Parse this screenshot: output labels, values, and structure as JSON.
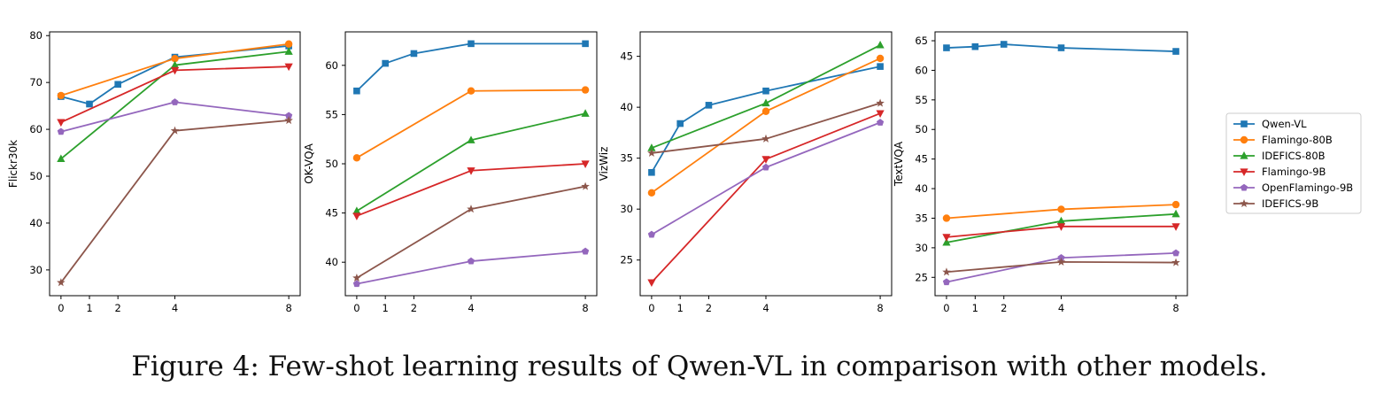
{
  "caption": "Figure 4: Few-shot learning results of Qwen-VL in comparison with other models.",
  "colors": {
    "Qwen-VL": "#1f77b4",
    "Flamingo-80B": "#ff7f0e",
    "IDEFICS-80B": "#2ca02c",
    "Flamingo-9B": "#d62728",
    "OpenFlamingo-9B": "#9467bd",
    "IDEFICS-9B": "#8c564b"
  },
  "markers": {
    "Qwen-VL": "square",
    "Flamingo-80B": "circle",
    "IDEFICS-80B": "triangle-up",
    "Flamingo-9B": "triangle-down",
    "OpenFlamingo-9B": "pentagon",
    "IDEFICS-9B": "star"
  },
  "legend": {
    "placement": "right",
    "entries": [
      "Qwen-VL",
      "Flamingo-80B",
      "IDEFICS-80B",
      "Flamingo-9B",
      "OpenFlamingo-9B",
      "IDEFICS-9B"
    ]
  },
  "chart_data": [
    {
      "type": "line",
      "title": "",
      "xlabel": "",
      "ylabel": "Flickr30k",
      "x_ticks": [
        0,
        1,
        2,
        4,
        8
      ],
      "xlim": [
        -0.4,
        8.4
      ],
      "ylim": [
        24.5,
        80.8
      ],
      "y_ticks": [
        30,
        40,
        50,
        60,
        70,
        80
      ],
      "grid": false,
      "series": [
        {
          "name": "Qwen-VL",
          "x": [
            0,
            1,
            2,
            4,
            8
          ],
          "y": [
            67.0,
            65.4,
            69.6,
            75.4,
            77.8
          ]
        },
        {
          "name": "Flamingo-80B",
          "x": [
            0,
            4,
            8
          ],
          "y": [
            67.2,
            75.1,
            78.2
          ]
        },
        {
          "name": "IDEFICS-80B",
          "x": [
            0,
            4,
            8
          ],
          "y": [
            53.7,
            73.7,
            76.6
          ]
        },
        {
          "name": "Flamingo-9B",
          "x": [
            0,
            4,
            8
          ],
          "y": [
            61.5,
            72.6,
            73.4
          ]
        },
        {
          "name": "OpenFlamingo-9B",
          "x": [
            0,
            4,
            8
          ],
          "y": [
            59.5,
            65.8,
            62.9
          ]
        },
        {
          "name": "IDEFICS-9B",
          "x": [
            0,
            4,
            8
          ],
          "y": [
            27.3,
            59.7,
            61.9
          ]
        }
      ]
    },
    {
      "type": "line",
      "title": "",
      "xlabel": "",
      "ylabel": "OK-VQA",
      "x_ticks": [
        0,
        1,
        2,
        4,
        8
      ],
      "xlim": [
        -0.4,
        8.4
      ],
      "ylim": [
        36.6,
        63.4
      ],
      "y_ticks": [
        40,
        45,
        50,
        55,
        60
      ],
      "grid": false,
      "series": [
        {
          "name": "Qwen-VL",
          "x": [
            0,
            1,
            2,
            4,
            8
          ],
          "y": [
            57.4,
            60.2,
            61.2,
            62.2,
            62.2
          ]
        },
        {
          "name": "Flamingo-80B",
          "x": [
            0,
            4,
            8
          ],
          "y": [
            50.6,
            57.4,
            57.5
          ]
        },
        {
          "name": "IDEFICS-80B",
          "x": [
            0,
            4,
            8
          ],
          "y": [
            45.2,
            52.4,
            55.1
          ]
        },
        {
          "name": "Flamingo-9B",
          "x": [
            0,
            4,
            8
          ],
          "y": [
            44.7,
            49.3,
            50.0
          ]
        },
        {
          "name": "OpenFlamingo-9B",
          "x": [
            0,
            4,
            8
          ],
          "y": [
            37.8,
            40.1,
            41.1
          ]
        },
        {
          "name": "IDEFICS-9B",
          "x": [
            0,
            4,
            8
          ],
          "y": [
            38.4,
            45.4,
            47.7
          ]
        }
      ]
    },
    {
      "type": "line",
      "title": "",
      "xlabel": "",
      "ylabel": "VizWiz",
      "x_ticks": [
        0,
        1,
        2,
        4,
        8
      ],
      "xlim": [
        -0.4,
        8.4
      ],
      "ylim": [
        21.5,
        47.4
      ],
      "y_ticks": [
        25,
        30,
        35,
        40,
        45
      ],
      "grid": false,
      "series": [
        {
          "name": "Qwen-VL",
          "x": [
            0,
            1,
            2,
            4,
            8
          ],
          "y": [
            33.6,
            38.4,
            40.2,
            41.6,
            44.0
          ]
        },
        {
          "name": "Flamingo-80B",
          "x": [
            0,
            4,
            8
          ],
          "y": [
            31.6,
            39.6,
            44.8
          ]
        },
        {
          "name": "IDEFICS-80B",
          "x": [
            0,
            4,
            8
          ],
          "y": [
            36.0,
            40.4,
            46.1
          ]
        },
        {
          "name": "Flamingo-9B",
          "x": [
            0,
            4,
            8
          ],
          "y": [
            22.8,
            34.9,
            39.4
          ]
        },
        {
          "name": "OpenFlamingo-9B",
          "x": [
            0,
            4,
            8
          ],
          "y": [
            27.5,
            34.1,
            38.5
          ]
        },
        {
          "name": "IDEFICS-9B",
          "x": [
            0,
            4,
            8
          ],
          "y": [
            35.5,
            36.9,
            40.4
          ]
        }
      ]
    },
    {
      "type": "line",
      "title": "",
      "xlabel": "",
      "ylabel": "TextVQA",
      "x_ticks": [
        0,
        1,
        2,
        4,
        8
      ],
      "xlim": [
        -0.4,
        8.4
      ],
      "ylim": [
        21.9,
        66.5
      ],
      "y_ticks": [
        25,
        30,
        35,
        40,
        45,
        50,
        55,
        60,
        65
      ],
      "grid": false,
      "series": [
        {
          "name": "Qwen-VL",
          "x": [
            0,
            1,
            2,
            4,
            8
          ],
          "y": [
            63.8,
            64.0,
            64.4,
            63.8,
            63.2
          ]
        },
        {
          "name": "Flamingo-80B",
          "x": [
            0,
            4,
            8
          ],
          "y": [
            35.0,
            36.5,
            37.3
          ]
        },
        {
          "name": "IDEFICS-80B",
          "x": [
            0,
            4,
            8
          ],
          "y": [
            30.9,
            34.5,
            35.7
          ]
        },
        {
          "name": "Flamingo-9B",
          "x": [
            0,
            4,
            8
          ],
          "y": [
            31.8,
            33.6,
            33.6
          ]
        },
        {
          "name": "OpenFlamingo-9B",
          "x": [
            0,
            4,
            8
          ],
          "y": [
            24.2,
            28.3,
            29.1
          ]
        },
        {
          "name": "IDEFICS-9B",
          "x": [
            0,
            4,
            8
          ],
          "y": [
            25.9,
            27.6,
            27.5
          ]
        }
      ]
    }
  ]
}
